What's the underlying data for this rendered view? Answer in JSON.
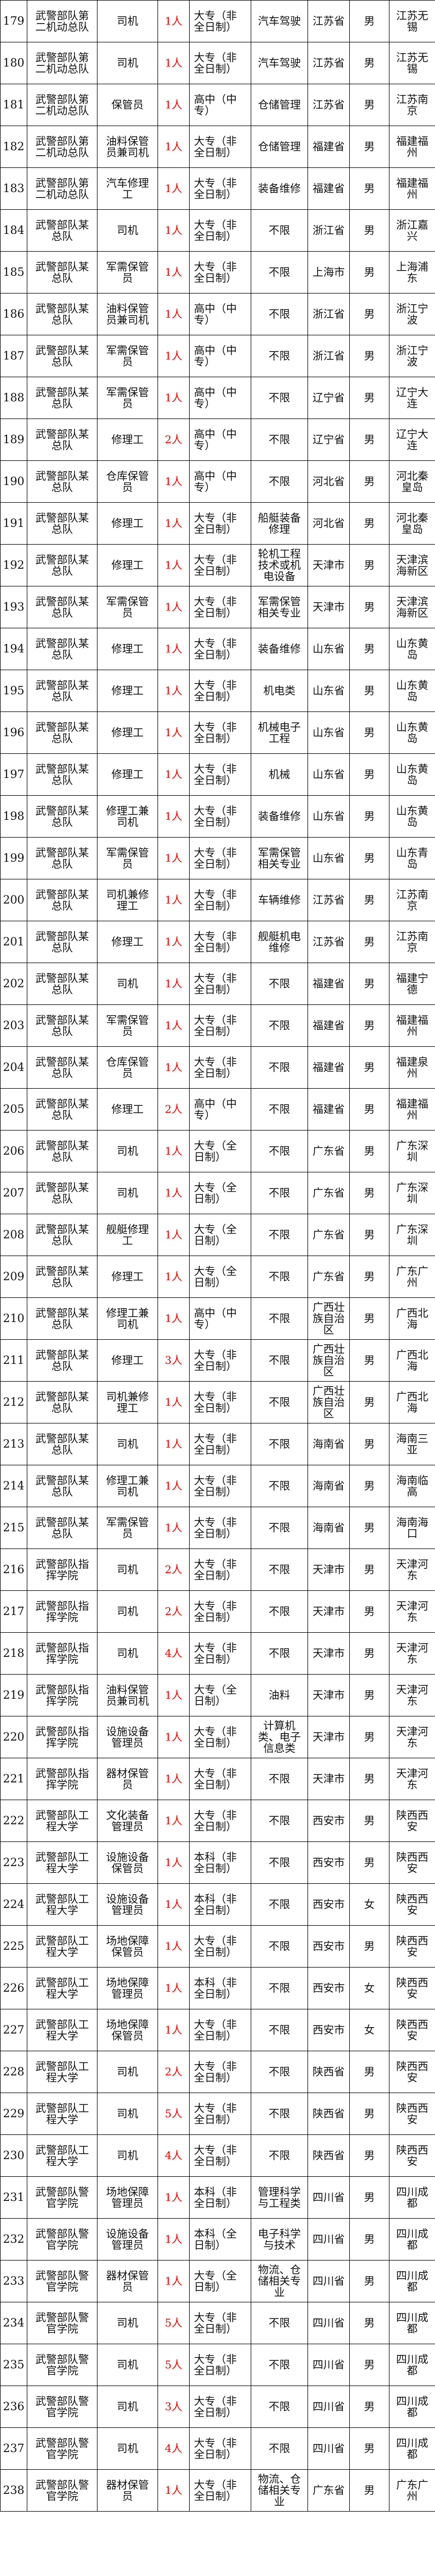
{
  "colors": {
    "count": "#e60000",
    "text": "#111111",
    "border": "#000000"
  },
  "rows": [
    [
      "179",
      "武警部队第二机动总队",
      "司机",
      "1人",
      "大专（非全日制）",
      "汽车驾驶",
      "江苏省",
      "男",
      "江苏无锡"
    ],
    [
      "180",
      "武警部队第二机动总队",
      "司机",
      "1人",
      "大专（非全日制）",
      "汽车驾驶",
      "江苏省",
      "男",
      "江苏无锡"
    ],
    [
      "181",
      "武警部队第二机动总队",
      "保管员",
      "1人",
      "高中（中专）",
      "仓储管理",
      "江苏省",
      "男",
      "江苏南京"
    ],
    [
      "182",
      "武警部队第二机动总队",
      "油料保管员兼司机",
      "1人",
      "大专（非全日制）",
      "仓储管理",
      "福建省",
      "男",
      "福建福州"
    ],
    [
      "183",
      "武警部队第二机动总队",
      "汽车修理工",
      "1人",
      "大专（非全日制）",
      "装备维修",
      "福建省",
      "男",
      "福建福州"
    ],
    [
      "184",
      "武警部队某总队",
      "司机",
      "1人",
      "大专（非全日制）",
      "不限",
      "浙江省",
      "男",
      "浙江嘉兴"
    ],
    [
      "185",
      "武警部队某总队",
      "军需保管员",
      "1人",
      "大专（非全日制）",
      "不限",
      "上海市",
      "男",
      "上海浦东"
    ],
    [
      "186",
      "武警部队某总队",
      "油料保管员兼司机",
      "1人",
      "高中（中专）",
      "不限",
      "浙江省",
      "男",
      "浙江宁波"
    ],
    [
      "187",
      "武警部队某总队",
      "军需保管员",
      "1人",
      "高中（中专）",
      "不限",
      "浙江省",
      "男",
      "浙江宁波"
    ],
    [
      "188",
      "武警部队某总队",
      "军需保管员",
      "1人",
      "高中（中专）",
      "不限",
      "辽宁省",
      "男",
      "辽宁大连"
    ],
    [
      "189",
      "武警部队某总队",
      "修理工",
      "2人",
      "高中（中专）",
      "不限",
      "辽宁省",
      "男",
      "辽宁大连"
    ],
    [
      "190",
      "武警部队某总队",
      "仓库保管员",
      "1人",
      "高中（中专）",
      "不限",
      "河北省",
      "男",
      "河北秦皇岛"
    ],
    [
      "191",
      "武警部队某总队",
      "修理工",
      "1人",
      "大专（非全日制）",
      "船艇装备修理",
      "河北省",
      "男",
      "河北秦皇岛"
    ],
    [
      "192",
      "武警部队某总队",
      "修理工",
      "1人",
      "大专（非全日制）",
      "轮机工程技术或机电设备",
      "天津市",
      "男",
      "天津滨海新区"
    ],
    [
      "193",
      "武警部队某总队",
      "军需保管员",
      "1人",
      "大专（非全日制）",
      "军需保管相关专业",
      "天津市",
      "男",
      "天津滨海新区"
    ],
    [
      "194",
      "武警部队某总队",
      "修理工",
      "1人",
      "大专（非全日制）",
      "装备维修",
      "山东省",
      "男",
      "山东黄岛"
    ],
    [
      "195",
      "武警部队某总队",
      "修理工",
      "1人",
      "大专（非全日制）",
      "机电类",
      "山东省",
      "男",
      "山东黄岛"
    ],
    [
      "196",
      "武警部队某总队",
      "修理工",
      "1人",
      "大专（非全日制）",
      "机械电子工程",
      "山东省",
      "男",
      "山东黄岛"
    ],
    [
      "197",
      "武警部队某总队",
      "修理工",
      "1人",
      "大专（非全日制）",
      "机械",
      "山东省",
      "男",
      "山东黄岛"
    ],
    [
      "198",
      "武警部队某总队",
      "修理工兼司机",
      "1人",
      "大专（非全日制）",
      "装备维修",
      "山东省",
      "男",
      "山东黄岛"
    ],
    [
      "199",
      "武警部队某总队",
      "军需保管员",
      "1人",
      "大专（非全日制）",
      "军需保管相关专业",
      "山东省",
      "男",
      "山东青岛"
    ],
    [
      "200",
      "武警部队某总队",
      "司机兼修理工",
      "1人",
      "大专（非全日制）",
      "车辆维修",
      "江苏省",
      "男",
      "江苏南京"
    ],
    [
      "201",
      "武警部队某总队",
      "修理工",
      "1人",
      "大专（非全日制）",
      "舰艇机电维修",
      "江苏省",
      "男",
      "江苏南京"
    ],
    [
      "202",
      "武警部队某总队",
      "司机",
      "1人",
      "大专（非全日制）",
      "不限",
      "福建省",
      "男",
      "福建宁德"
    ],
    [
      "203",
      "武警部队某总队",
      "军需保管员",
      "1人",
      "大专（非全日制）",
      "不限",
      "福建省",
      "男",
      "福建福州"
    ],
    [
      "204",
      "武警部队某总队",
      "仓库保管员",
      "1人",
      "大专（非全日制）",
      "不限",
      "福建省",
      "男",
      "福建泉州"
    ],
    [
      "205",
      "武警部队某总队",
      "修理工",
      "2人",
      "高中（中专）",
      "不限",
      "福建省",
      "男",
      "福建福州"
    ],
    [
      "206",
      "武警部队某总队",
      "司机",
      "1人",
      "大专（全日制）",
      "不限",
      "广东省",
      "男",
      "广东深圳"
    ],
    [
      "207",
      "武警部队某总队",
      "司机",
      "1人",
      "大专（全日制）",
      "不限",
      "广东省",
      "男",
      "广东深圳"
    ],
    [
      "208",
      "武警部队某总队",
      "舰艇修理工",
      "1人",
      "大专（全日制）",
      "不限",
      "广东省",
      "男",
      "广东深圳"
    ],
    [
      "209",
      "武警部队某总队",
      "修理工",
      "1人",
      "大专（全日制）",
      "不限",
      "广东省",
      "男",
      "广东广州"
    ],
    [
      "210",
      "武警部队某总队",
      "修理工兼司机",
      "1人",
      "高中（中专）",
      "不限",
      "广西壮族自治区",
      "男",
      "广西北海"
    ],
    [
      "211",
      "武警部队某总队",
      "修理工",
      "3人",
      "大专（非全日制）",
      "不限",
      "广西壮族自治区",
      "男",
      "广西北海"
    ],
    [
      "212",
      "武警部队某总队",
      "司机兼修理工",
      "1人",
      "大专（非全日制）",
      "不限",
      "广西壮族自治区",
      "男",
      "广西北海"
    ],
    [
      "213",
      "武警部队某总队",
      "司机",
      "1人",
      "大专（非全日制）",
      "不限",
      "海南省",
      "男",
      "海南三亚"
    ],
    [
      "214",
      "武警部队某总队",
      "修理工兼司机",
      "1人",
      "大专（非全日制）",
      "不限",
      "海南省",
      "男",
      "海南临高"
    ],
    [
      "215",
      "武警部队某总队",
      "军需保管员",
      "1人",
      "大专（非全日制）",
      "不限",
      "海南省",
      "男",
      "海南海口"
    ],
    [
      "216",
      "武警部队指挥学院",
      "司机",
      "2人",
      "大专（非全日制）",
      "不限",
      "天津市",
      "男",
      "天津河东"
    ],
    [
      "217",
      "武警部队指挥学院",
      "司机",
      "2人",
      "大专（非全日制）",
      "不限",
      "天津市",
      "男",
      "天津河东"
    ],
    [
      "218",
      "武警部队指挥学院",
      "司机",
      "4人",
      "大专（非全日制）",
      "不限",
      "天津市",
      "男",
      "天津河东"
    ],
    [
      "219",
      "武警部队指挥学院",
      "油料保管员兼司机",
      "1人",
      "大专（全日制）",
      "油料",
      "天津市",
      "男",
      "天津河东"
    ],
    [
      "220",
      "武警部队指挥学院",
      "设施设备管理员",
      "1人",
      "大专（非全日制）",
      "计算机类、电子信息类",
      "天津市",
      "男",
      "天津河东"
    ],
    [
      "221",
      "武警部队指挥学院",
      "器材保管员",
      "1人",
      "大专（非全日制）",
      "不限",
      "天津市",
      "男",
      "天津河东"
    ],
    [
      "222",
      "武警部队工程大学",
      "文化装备管理员",
      "1人",
      "大专（非全日制）",
      "不限",
      "西安市",
      "男",
      "陕西西安"
    ],
    [
      "223",
      "武警部队工程大学",
      "设施设备保管员",
      "1人",
      "本科（非全日制）",
      "不限",
      "西安市",
      "男",
      "陕西西安"
    ],
    [
      "224",
      "武警部队工程大学",
      "设施设备管理员",
      "1人",
      "本科（非全日制）",
      "不限",
      "西安市",
      "女",
      "陕西西安"
    ],
    [
      "225",
      "武警部队工程大学",
      "场地保障保管员",
      "1人",
      "大专（非全日制）",
      "不限",
      "西安市",
      "男",
      "陕西西安"
    ],
    [
      "226",
      "武警部队工程大学",
      "场地保障管理员",
      "1人",
      "本科（非全日制）",
      "不限",
      "西安市",
      "女",
      "陕西西安"
    ],
    [
      "227",
      "武警部队工程大学",
      "场地保障保管员",
      "1人",
      "大专（非全日制）",
      "不限",
      "西安市",
      "女",
      "陕西西安"
    ],
    [
      "228",
      "武警部队工程大学",
      "司机",
      "2人",
      "大专（非全日制）",
      "不限",
      "陕西省",
      "男",
      "陕西西安"
    ],
    [
      "229",
      "武警部队工程大学",
      "司机",
      "5人",
      "大专（非全日制）",
      "不限",
      "陕西省",
      "男",
      "陕西西安"
    ],
    [
      "230",
      "武警部队工程大学",
      "司机",
      "4人",
      "大专（非全日制）",
      "不限",
      "陕西省",
      "男",
      "陕西西安"
    ],
    [
      "231",
      "武警部队警官学院",
      "场地保障管理员",
      "1人",
      "本科（非全日制）",
      "管理科学与工程类",
      "四川省",
      "男",
      "四川成都"
    ],
    [
      "232",
      "武警部队警官学院",
      "设施设备管理员",
      "1人",
      "本科（全日制）",
      "电子科学与技术",
      "四川省",
      "男",
      "四川成都"
    ],
    [
      "233",
      "武警部队警官学院",
      "器材保管员",
      "1人",
      "大专（全日制）",
      "物流、仓储相关专业",
      "四川省",
      "男",
      "四川成都"
    ],
    [
      "234",
      "武警部队警官学院",
      "司机",
      "5人",
      "大专（非全日制）",
      "不限",
      "四川省",
      "男",
      "四川成都"
    ],
    [
      "235",
      "武警部队警官学院",
      "司机",
      "5人",
      "大专（非全日制）",
      "不限",
      "四川省",
      "男",
      "四川成都"
    ],
    [
      "236",
      "武警部队警官学院",
      "司机",
      "3人",
      "大专（非全日制）",
      "不限",
      "四川省",
      "男",
      "四川成都"
    ],
    [
      "237",
      "武警部队警官学院",
      "司机",
      "4人",
      "大专（非全日制）",
      "不限",
      "四川省",
      "男",
      "四川成都"
    ],
    [
      "238",
      "武警部队警官学院",
      "器材保管员",
      "1人",
      "大专（非全日制）",
      "物流、仓储相关专业",
      "广东省",
      "男",
      "广东广州"
    ]
  ]
}
